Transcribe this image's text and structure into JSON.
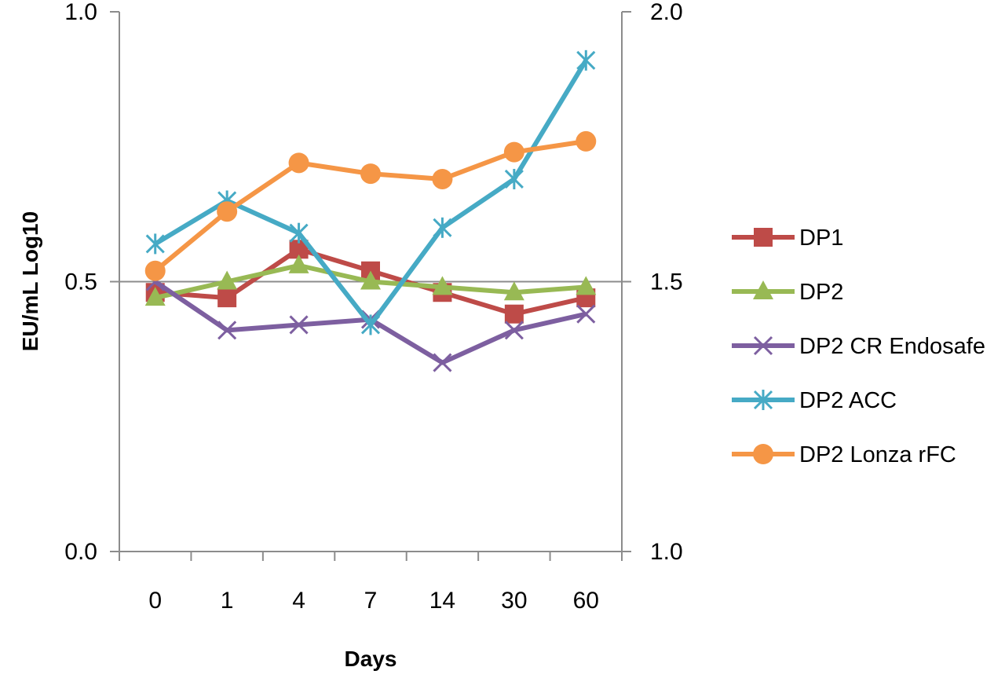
{
  "chart_data": {
    "type": "line",
    "title": "",
    "xlabel": "Days",
    "ylabel": "EU/mL Log10",
    "categories": [
      "0",
      "1",
      "4",
      "7",
      "14",
      "30",
      "60"
    ],
    "y_left": {
      "ylim": [
        0.0,
        1.0
      ],
      "ticks": [
        "0.0",
        "0.5",
        "1.0"
      ]
    },
    "y_right": {
      "ylim": [
        1.0,
        2.0
      ],
      "ticks": [
        "1.0",
        "1.5",
        "2.0"
      ]
    },
    "grid": "horizontal line at 0.5 only",
    "legend_position": "right",
    "series": [
      {
        "name": "DP1",
        "color": "#be4b48",
        "marker": "square",
        "values": [
          0.48,
          0.47,
          0.56,
          0.52,
          0.48,
          0.44,
          0.47
        ]
      },
      {
        "name": "DP2",
        "color": "#98b954",
        "marker": "triangle",
        "values": [
          0.47,
          0.5,
          0.53,
          0.5,
          0.49,
          0.48,
          0.49
        ]
      },
      {
        "name": "DP2 CR Endosafe",
        "color": "#7d5fa0",
        "marker": "x",
        "values": [
          0.5,
          0.41,
          0.42,
          0.43,
          0.35,
          0.41,
          0.44
        ]
      },
      {
        "name": "DP2 ACC",
        "color": "#46aac5",
        "marker": "star",
        "values": [
          0.57,
          0.65,
          0.59,
          0.42,
          0.6,
          0.69,
          0.91
        ]
      },
      {
        "name": "DP2 Lonza rFC",
        "color": "#f59646",
        "marker": "circle",
        "values": [
          0.52,
          0.63,
          0.72,
          0.7,
          0.69,
          0.74,
          0.76
        ]
      }
    ]
  }
}
